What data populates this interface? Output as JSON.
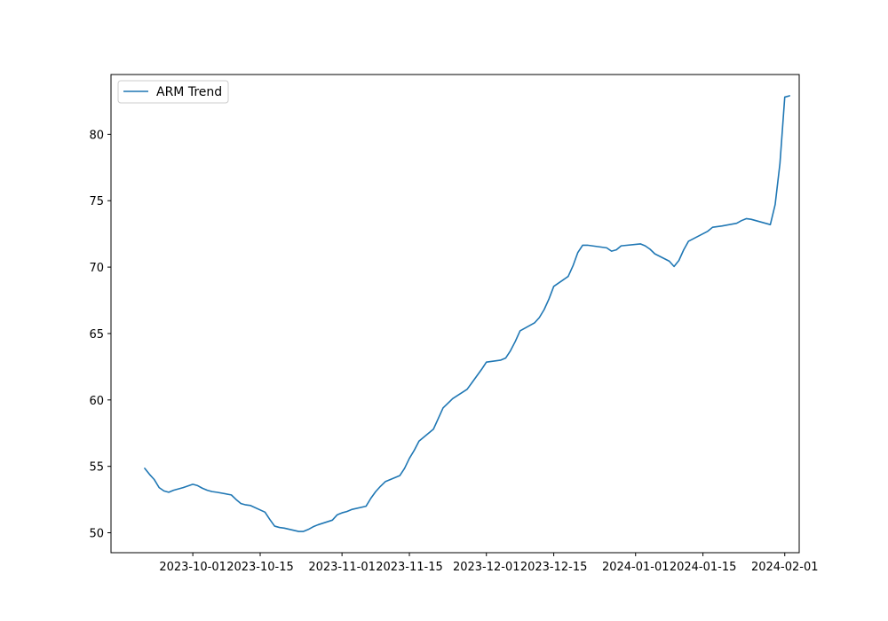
{
  "chart_data": {
    "type": "line",
    "title": "",
    "xlabel": "",
    "ylabel": "",
    "x_scale": "date",
    "xlim": [
      "2023-09-14",
      "2024-02-04"
    ],
    "ylim": [
      48.5,
      84.5
    ],
    "grid": false,
    "legend_placement": "top-left",
    "x_ticks": [
      "2023-10-01",
      "2023-10-15",
      "2023-11-01",
      "2023-11-15",
      "2023-12-01",
      "2023-12-15",
      "2024-01-01",
      "2024-01-15",
      "2024-02-01"
    ],
    "y_ticks": [
      50,
      55,
      60,
      65,
      70,
      75,
      80
    ],
    "series": [
      {
        "name": "ARM Trend",
        "color": "#1f77b4",
        "x": [
          "2023-09-21",
          "2023-09-22",
          "2023-09-23",
          "2023-09-24",
          "2023-09-25",
          "2023-09-26",
          "2023-09-27",
          "2023-09-28",
          "2023-09-29",
          "2023-10-01",
          "2023-10-02",
          "2023-10-03",
          "2023-10-04",
          "2023-10-05",
          "2023-10-06",
          "2023-10-09",
          "2023-10-10",
          "2023-10-11",
          "2023-10-12",
          "2023-10-13",
          "2023-10-16",
          "2023-10-17",
          "2023-10-18",
          "2023-10-19",
          "2023-10-20",
          "2023-10-23",
          "2023-10-24",
          "2023-10-25",
          "2023-10-26",
          "2023-10-27",
          "2023-10-30",
          "2023-10-31",
          "2023-11-01",
          "2023-11-02",
          "2023-11-03",
          "2023-11-06",
          "2023-11-07",
          "2023-11-08",
          "2023-11-09",
          "2023-11-10",
          "2023-11-13",
          "2023-11-14",
          "2023-11-15",
          "2023-11-16",
          "2023-11-17",
          "2023-11-20",
          "2023-11-21",
          "2023-11-22",
          "2023-11-24",
          "2023-11-27",
          "2023-11-28",
          "2023-11-29",
          "2023-11-30",
          "2023-12-01",
          "2023-12-04",
          "2023-12-05",
          "2023-12-06",
          "2023-12-07",
          "2023-12-08",
          "2023-12-11",
          "2023-12-12",
          "2023-12-13",
          "2023-12-14",
          "2023-12-15",
          "2023-12-18",
          "2023-12-19",
          "2023-12-20",
          "2023-12-21",
          "2023-12-22",
          "2023-12-26",
          "2023-12-27",
          "2023-12-28",
          "2023-12-29",
          "2024-01-02",
          "2024-01-03",
          "2024-01-04",
          "2024-01-05",
          "2024-01-08",
          "2024-01-09",
          "2024-01-10",
          "2024-01-11",
          "2024-01-12",
          "2024-01-16",
          "2024-01-17",
          "2024-01-18",
          "2024-01-19",
          "2024-01-22",
          "2024-01-23",
          "2024-01-24",
          "2024-01-25",
          "2024-01-26",
          "2024-01-29",
          "2024-01-30",
          "2024-01-31",
          "2024-02-01",
          "2024-02-02"
        ],
        "y": [
          54.85,
          54.4,
          54.0,
          53.4,
          53.15,
          53.05,
          53.2,
          53.3,
          53.4,
          53.65,
          53.55,
          53.35,
          53.2,
          53.1,
          53.05,
          52.85,
          52.5,
          52.2,
          52.1,
          52.05,
          51.55,
          51.0,
          50.5,
          50.4,
          50.35,
          50.1,
          50.1,
          50.25,
          50.45,
          50.6,
          50.95,
          51.35,
          51.5,
          51.6,
          51.75,
          52.0,
          52.6,
          53.1,
          53.5,
          53.85,
          54.3,
          54.85,
          55.6,
          56.2,
          56.9,
          57.8,
          58.6,
          59.4,
          60.1,
          60.8,
          61.3,
          61.8,
          62.3,
          62.85,
          63.0,
          63.15,
          63.7,
          64.4,
          65.2,
          65.8,
          66.2,
          66.8,
          67.6,
          68.55,
          69.3,
          70.1,
          71.1,
          71.65,
          71.65,
          71.45,
          71.2,
          71.3,
          71.6,
          71.75,
          71.6,
          71.35,
          71.0,
          70.45,
          70.05,
          70.5,
          71.3,
          71.95,
          72.7,
          73.0,
          73.05,
          73.1,
          73.3,
          73.5,
          73.65,
          73.6,
          73.5,
          73.2,
          74.7,
          77.8,
          82.8,
          82.9
        ]
      }
    ]
  }
}
